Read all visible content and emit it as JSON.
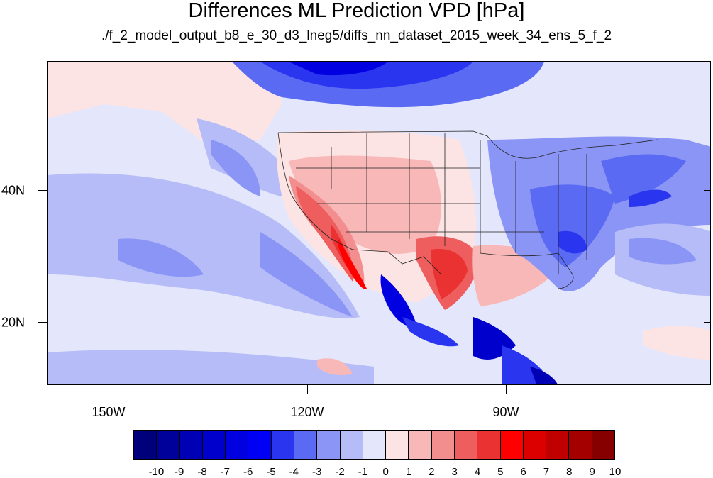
{
  "title": "Differences ML Prediction VPD [hPa]",
  "subtitle": "./f_2_model_output_b8_e_30_d3_lneg5/diffs_nn_dataset_2015_week_34_ens_5_f_2",
  "map": {
    "lon_labels": [
      "150W",
      "120W",
      "90W"
    ],
    "lat_labels": [
      "40N",
      "20N"
    ]
  },
  "colorbar": {
    "labels": [
      "-10",
      "-9",
      "-8",
      "-7",
      "-6",
      "-5",
      "-4",
      "-3",
      "-2",
      "-1",
      "0",
      "1",
      "2",
      "3",
      "4",
      "5",
      "6",
      "7",
      "8",
      "9",
      "10"
    ],
    "colors": [
      "#00007a",
      "#00009a",
      "#0000b4",
      "#0000cc",
      "#0000e0",
      "#0000f5",
      "#2a35f0",
      "#5a6af2",
      "#8a95f5",
      "#b6bcf7",
      "#e4e6fb",
      "#fde4e4",
      "#f8b8b8",
      "#f38e8e",
      "#ee5e5e",
      "#ea3232",
      "#ff0000",
      "#dd0000",
      "#c00000",
      "#a40000",
      "#860000"
    ]
  }
}
